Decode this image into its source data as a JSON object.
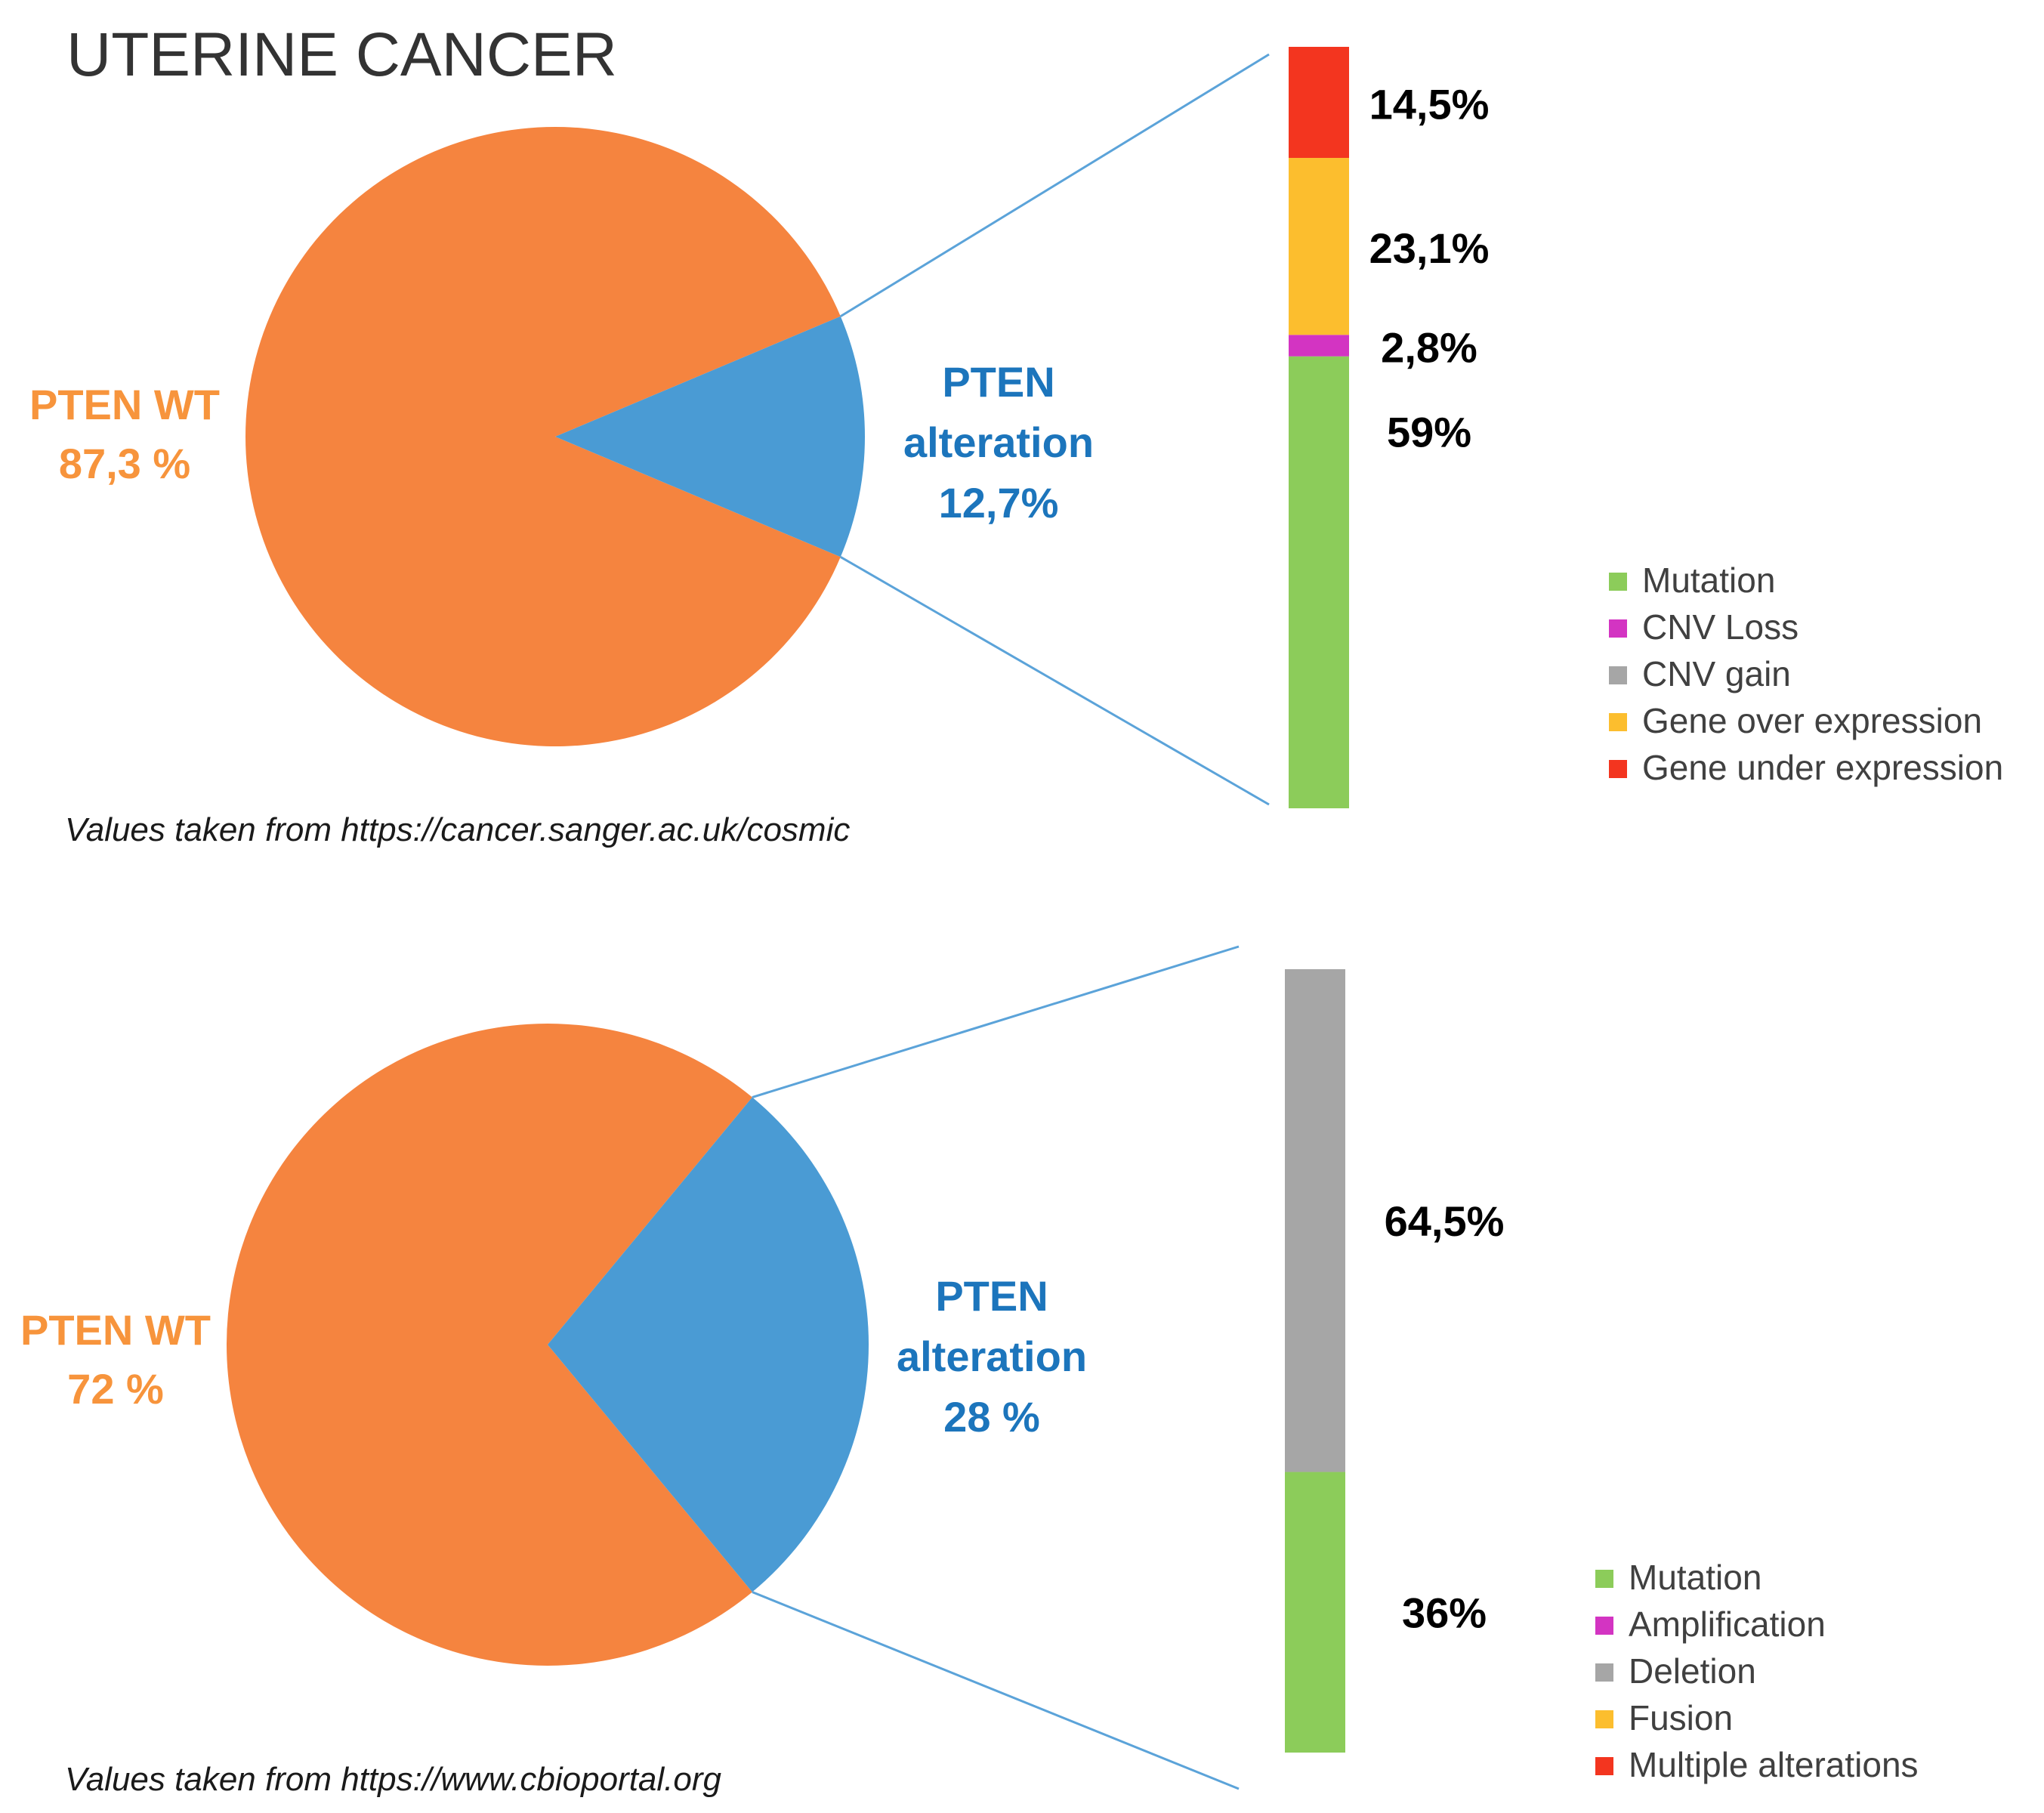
{
  "page_title": "UTERINE CANCER",
  "colors": {
    "wt": "#F5843F",
    "wt_label": "#F7943C",
    "alteration": "#4A9BD4",
    "alteration_label": "#1C75BC",
    "connector": "#5BA3D9",
    "mutation": "#8CCC5A",
    "cnv_loss": "#D334C2",
    "cnv_gain": "#A6A6A6",
    "over_expression": "#FCBE2E",
    "under_expression": "#F3351F",
    "text": "#000000",
    "title": "#333333"
  },
  "chart_data": [
    {
      "type": "pie",
      "title": "UTERINE CANCER",
      "slices": [
        {
          "name": "PTEN WT",
          "value": 87.3,
          "label_line1": "PTEN WT",
          "label_line2": "87,3 %",
          "color": "#F5843F"
        },
        {
          "name": "PTEN alteration",
          "value": 12.7,
          "label_line1": "PTEN",
          "label_line2": "alteration",
          "label_line3": "12,7%",
          "color": "#4A9BD4"
        }
      ],
      "breakdown": {
        "type": "stacked_bar",
        "segments": [
          {
            "name": "Mutation",
            "value": 59,
            "label": "59%",
            "color": "#8CCC5A"
          },
          {
            "name": "CNV Loss",
            "value": 2.8,
            "label": "2,8%",
            "color": "#D334C2"
          },
          {
            "name": "Gene over expression",
            "value": 23.1,
            "label": "23,1%",
            "color": "#FCBE2E"
          },
          {
            "name": "Gene under expression",
            "value": 14.5,
            "label": "14,5%",
            "color": "#F3351F"
          }
        ]
      },
      "legend": [
        {
          "label": "Mutation",
          "color": "#8CCC5A"
        },
        {
          "label": "CNV Loss",
          "color": "#D334C2"
        },
        {
          "label": "CNV gain",
          "color": "#A6A6A6"
        },
        {
          "label": "Gene over expression",
          "color": "#FCBE2E"
        },
        {
          "label": "Gene under expression",
          "color": "#F3351F"
        }
      ],
      "source": "Values taken from https://cancer.sanger.ac.uk/cosmic"
    },
    {
      "type": "pie",
      "slices": [
        {
          "name": "PTEN WT",
          "value": 72,
          "label_line1": "PTEN WT",
          "label_line2": "72 %",
          "color": "#F5843F"
        },
        {
          "name": "PTEN alteration",
          "value": 28,
          "label_line1": "PTEN",
          "label_line2": "alteration",
          "label_line3": "28 %",
          "color": "#4A9BD4"
        }
      ],
      "breakdown": {
        "type": "stacked_bar",
        "segments": [
          {
            "name": "Mutation",
            "value": 36,
            "label": "36%",
            "color": "#8CCC5A"
          },
          {
            "name": "Deletion",
            "value": 64.5,
            "label": "64,5%",
            "color": "#A6A6A6"
          }
        ]
      },
      "legend": [
        {
          "label": "Mutation",
          "color": "#8CCC5A"
        },
        {
          "label": "Amplification",
          "color": "#D334C2"
        },
        {
          "label": "Deletion",
          "color": "#A6A6A6"
        },
        {
          "label": "Fusion",
          "color": "#FCBE2E"
        },
        {
          "label": "Multiple alterations",
          "color": "#F3351F"
        }
      ],
      "source": "Values taken from https://www.cbioportal.org"
    }
  ]
}
